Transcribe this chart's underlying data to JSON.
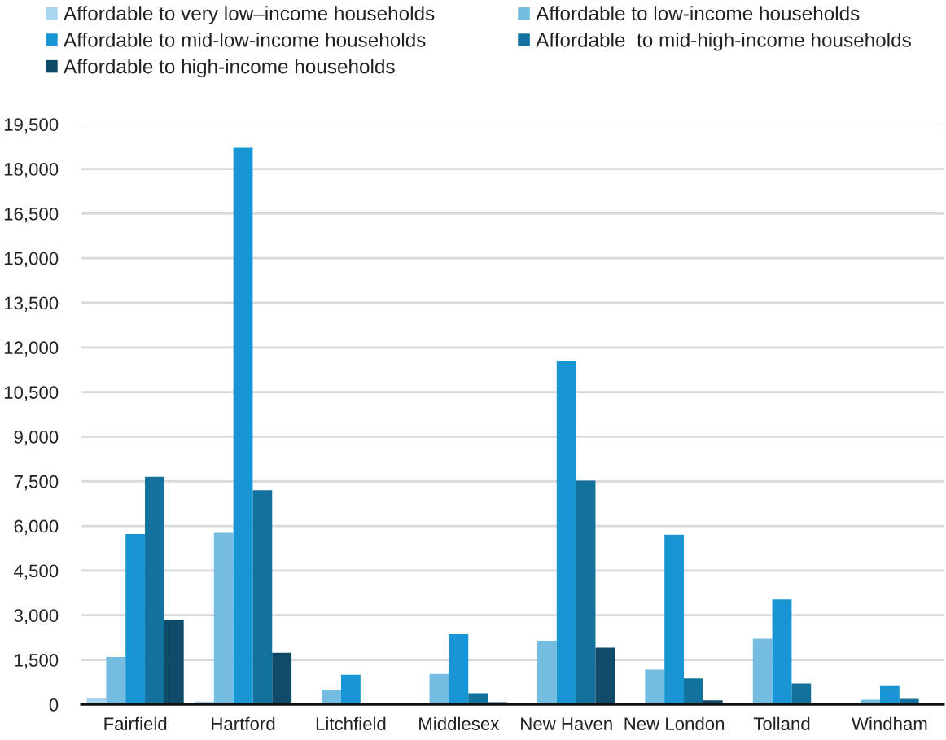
{
  "chart_data": {
    "type": "bar",
    "categories": [
      "Fairfield",
      "Hartford",
      "Litchfield",
      "Middlesex",
      "New Haven",
      "New London",
      "Tolland",
      "Windham"
    ],
    "series": [
      {
        "name": "Affordable to very low–income households",
        "color": "#a8d6f0",
        "values": [
          200,
          100,
          null,
          null,
          null,
          null,
          null,
          null
        ]
      },
      {
        "name": "Affordable to low-income households",
        "color": "#74bde0",
        "values": [
          1600,
          5770,
          500,
          1030,
          2140,
          1170,
          2210,
          160
        ]
      },
      {
        "name": "Affordable to mid-low-income households",
        "color": "#1896d3",
        "values": [
          5730,
          18710,
          1000,
          2360,
          11560,
          5710,
          3530,
          620
        ]
      },
      {
        "name": "Affordable  to mid-high-income households",
        "color": "#13719e",
        "values": [
          7650,
          7200,
          null,
          380,
          7520,
          880,
          710,
          190
        ]
      },
      {
        "name": "Affordable to high-income households",
        "color": "#0d4b69",
        "values": [
          2850,
          1740,
          null,
          80,
          1910,
          140,
          null,
          null
        ]
      }
    ],
    "ylim": [
      0,
      19500
    ],
    "yticks": [
      0,
      {
        "value": 1500,
        "label": "1,500"
      },
      {
        "value": 3000,
        "label": "3,000"
      },
      {
        "value": 4500,
        "label": "4,500"
      },
      {
        "value": 6000,
        "label": "6,000"
      },
      {
        "value": 7500,
        "label": "7,500"
      },
      {
        "value": 9000,
        "label": "9,000"
      },
      {
        "value": 10500,
        "label": "10,500"
      },
      {
        "value": 12000,
        "label": "12,000"
      },
      {
        "value": 13500,
        "label": "13,500"
      },
      {
        "value": 15000,
        "label": "15,000"
      },
      {
        "value": 16500,
        "label": "16,500"
      },
      {
        "value": 18000,
        "label": "18,000"
      },
      {
        "value": 19500,
        "label": "19,500"
      }
    ],
    "grid": "y",
    "legend": "top"
  }
}
